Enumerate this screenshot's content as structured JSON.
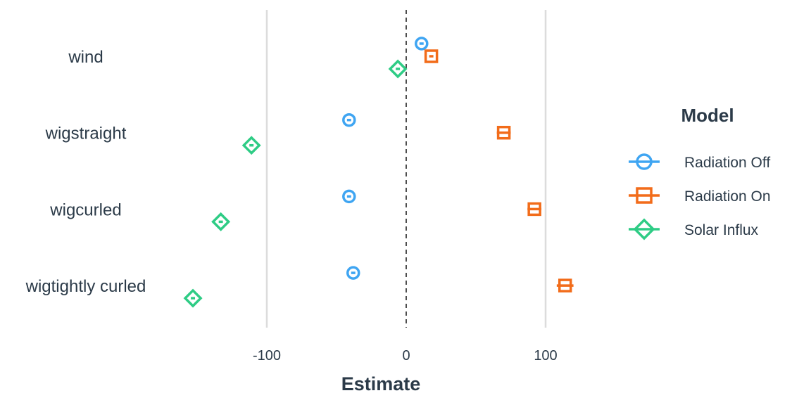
{
  "chart_data": {
    "type": "scatter",
    "terms": [
      "wind",
      "wigstraight",
      "wigcurled",
      "wigtightly curled"
    ],
    "xlabel": "Estimate",
    "xlim": [
      -200,
      184
    ],
    "xticks": [
      -100,
      0,
      100
    ],
    "xtick_labels": [
      "-100",
      "0",
      "100"
    ],
    "reference_line": 0,
    "grid": "vertical major lines at ticks",
    "legend": {
      "title": "Model",
      "position": "right"
    },
    "series": [
      {
        "name": "Radiation Off",
        "marker": "circle",
        "color": "#3fa5f2",
        "estimates": [
          11,
          -41,
          -41,
          -38
        ],
        "errors": [
          1.5,
          1.5,
          1.5,
          1.5
        ]
      },
      {
        "name": "Radiation On",
        "marker": "square",
        "color": "#f26c1a",
        "estimates": [
          18,
          70,
          92,
          114
        ],
        "errors": [
          1.5,
          5,
          5,
          6
        ]
      },
      {
        "name": "Solar Influx",
        "marker": "diamond",
        "color": "#2ecc85",
        "estimates": [
          -6,
          -111,
          -133,
          -153
        ],
        "errors": [
          1.5,
          1.5,
          1.5,
          1.5
        ]
      }
    ]
  }
}
